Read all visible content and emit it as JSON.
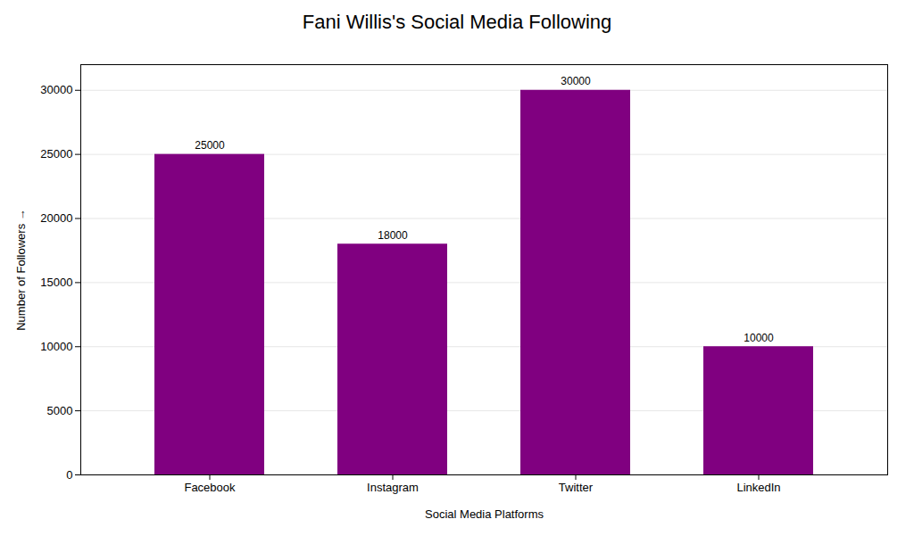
{
  "chart_data": {
    "type": "bar",
    "title": "Fani Willis's Social Media Following",
    "xlabel": "Social Media Platforms",
    "ylabel": "Number of Followers",
    "categories": [
      "Facebook",
      "Instagram",
      "Twitter",
      "LinkedIn"
    ],
    "values": [
      25000,
      18000,
      30000,
      10000
    ],
    "color": "#800080",
    "ylim": [
      0,
      32000
    ],
    "yticks": [
      0,
      5000,
      10000,
      15000,
      20000,
      25000,
      30000
    ],
    "grid": true,
    "data_labels": true
  }
}
